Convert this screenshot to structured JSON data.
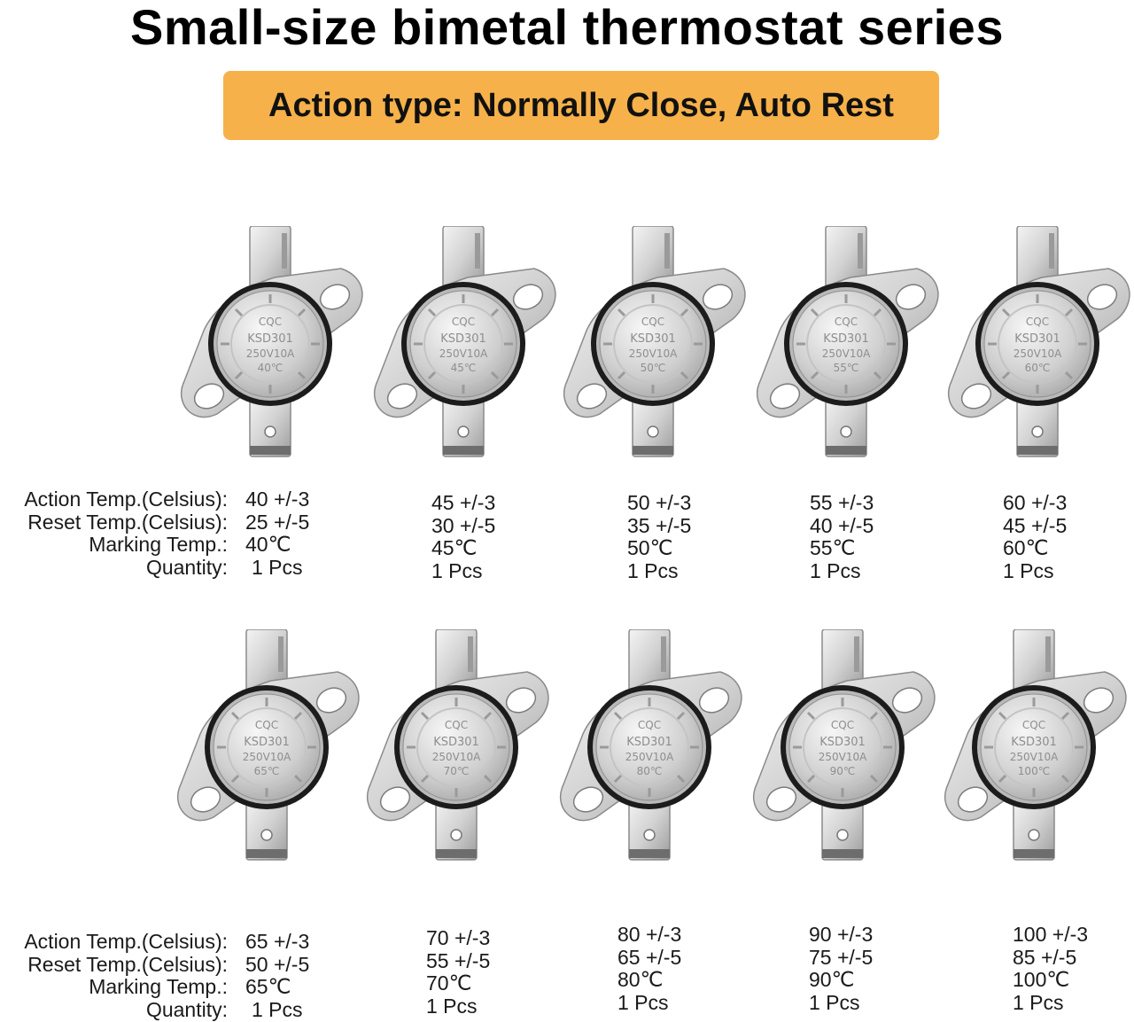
{
  "title": "Small-size bimetal thermostat series",
  "banner": "Action type: Normally Close, Auto Rest",
  "labels": {
    "action": "Action Temp.(Celsius):",
    "reset": "Reset  Temp.(Celsius):",
    "marking": "Marking Temp.:",
    "quantity": "Quantity:"
  },
  "device_text": {
    "brand": "CQC",
    "model": "KSD301",
    "rating": "250V10A"
  },
  "items": [
    {
      "action": "40 +/-3",
      "reset": "25 +/-5",
      "marking": "40℃",
      "quantity": "1 Pcs"
    },
    {
      "action": "45 +/-3",
      "reset": "30 +/-5",
      "marking": "45℃",
      "quantity": "1 Pcs"
    },
    {
      "action": "50 +/-3",
      "reset": "35 +/-5",
      "marking": "50℃",
      "quantity": "1 Pcs"
    },
    {
      "action": "55 +/-3",
      "reset": "40 +/-5",
      "marking": "55℃",
      "quantity": "1 Pcs"
    },
    {
      "action": "60 +/-3",
      "reset": "45 +/-5",
      "marking": "60℃",
      "quantity": "1 Pcs"
    },
    {
      "action": "65 +/-3",
      "reset": "50 +/-5",
      "marking": "65℃",
      "quantity": "1 Pcs"
    },
    {
      "action": "70 +/-3",
      "reset": "55 +/-5",
      "marking": "70℃",
      "quantity": "1 Pcs"
    },
    {
      "action": "80 +/-3",
      "reset": "65 +/-5",
      "marking": "80℃",
      "quantity": "1 Pcs"
    },
    {
      "action": "90 +/-3",
      "reset": "75 +/-5",
      "marking": "90℃",
      "quantity": "1 Pcs"
    },
    {
      "action": "100 +/-3",
      "reset": "85 +/-5",
      "marking": "100℃",
      "quantity": "1 Pcs"
    }
  ]
}
